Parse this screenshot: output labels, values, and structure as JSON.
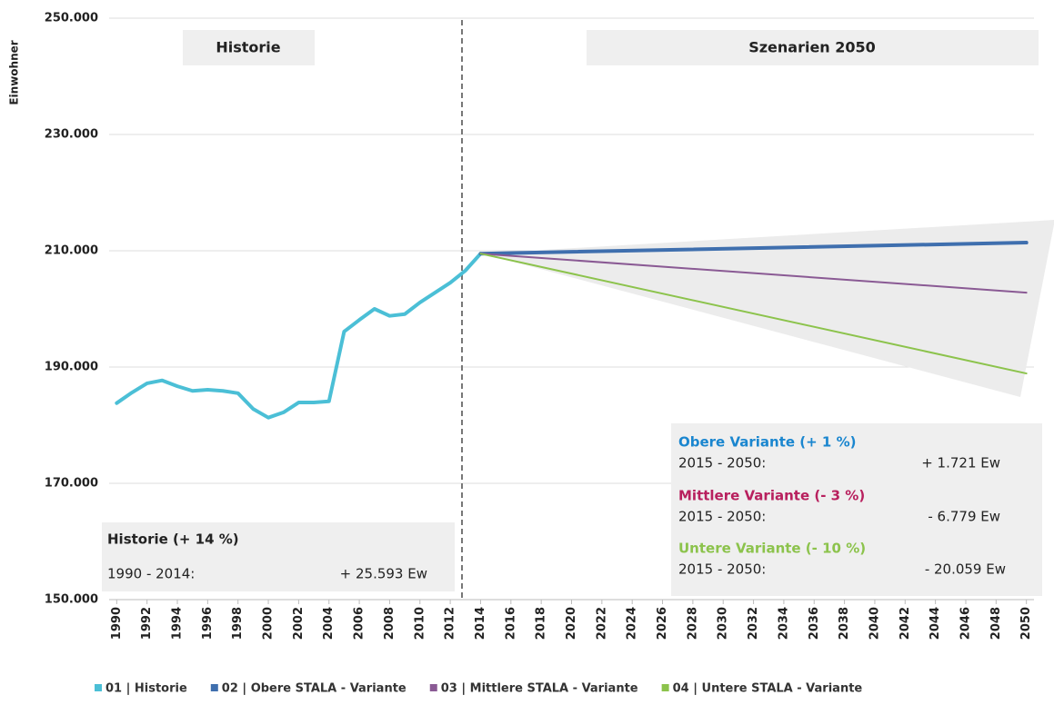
{
  "chart_data": {
    "type": "line",
    "y_label": "Einwohner",
    "xlim": [
      1989.5,
      2050.5
    ],
    "xticks": [
      1990,
      1992,
      1994,
      1996,
      1998,
      2000,
      2002,
      2004,
      2006,
      2008,
      2010,
      2012,
      2014,
      2016,
      2018,
      2020,
      2022,
      2024,
      2026,
      2028,
      2030,
      2032,
      2034,
      2036,
      2038,
      2040,
      2042,
      2044,
      2046,
      2048,
      2050
    ],
    "ylim": [
      150000,
      250000
    ],
    "yticks": [
      {
        "value": 150000,
        "label": "150.000"
      },
      {
        "value": 170000,
        "label": "170.000"
      },
      {
        "value": 190000,
        "label": "190.000"
      },
      {
        "value": 210000,
        "label": "210.000"
      },
      {
        "value": 230000,
        "label": "230.000"
      },
      {
        "value": 250000,
        "label": "250.000"
      }
    ],
    "grid": true,
    "legend": "bottom",
    "series": [
      {
        "name": "01 | Historie",
        "color": "#4bbfd6",
        "width": 4,
        "x": [
          1990,
          1991,
          1992,
          1993,
          1994,
          1995,
          1996,
          1997,
          1998,
          1999,
          2000,
          2001,
          2002,
          2003,
          2004,
          2005,
          2006,
          2007,
          2008,
          2009,
          2010,
          2011,
          2012,
          2013,
          2014
        ],
        "values": [
          183800,
          185600,
          187200,
          187700,
          186700,
          185900,
          186100,
          185900,
          185500,
          182800,
          181300,
          182200,
          183900,
          183900,
          184100,
          196100,
          198100,
          200000,
          198800,
          199100,
          201100,
          202800,
          204500,
          206600,
          209500
        ]
      },
      {
        "name": "02 | Obere STALA - Variante",
        "color": "#3f6fae",
        "width": 4,
        "x": [
          2014,
          2050
        ],
        "values": [
          209500,
          211400
        ]
      },
      {
        "name": "03 | Mittlere STALA - Variante",
        "color": "#8a5a94",
        "width": 2,
        "x": [
          2014,
          2050
        ],
        "values": [
          209500,
          202800
        ]
      },
      {
        "name": "04 | Untere STALA - Variante",
        "color": "#8cc34c",
        "width": 2,
        "x": [
          2014,
          2050
        ],
        "values": [
          209500,
          188900
        ]
      }
    ],
    "headers": [
      "Historie",
      "Szenarien 2050"
    ],
    "notes": [
      {
        "title": "Historie (+ 14 %)",
        "period": "1990 - 2014:",
        "change": "+ 25.593 Ew",
        "color": "#222222"
      },
      {
        "title": "Obere Variante (+ 1 %)",
        "period": "2015 - 2050:",
        "change": "+ 1.721 Ew",
        "color": "#1a86cf"
      },
      {
        "title": "Mittlere Variante (- 3 %)",
        "period": "2015 - 2050:",
        "change": "- 6.779 Ew",
        "color": "#b8205e"
      },
      {
        "title": "Untere Variante (- 10 %)",
        "period": "2015 - 2050:",
        "change": "- 20.059 Ew",
        "color": "#8cc34c"
      }
    ]
  }
}
